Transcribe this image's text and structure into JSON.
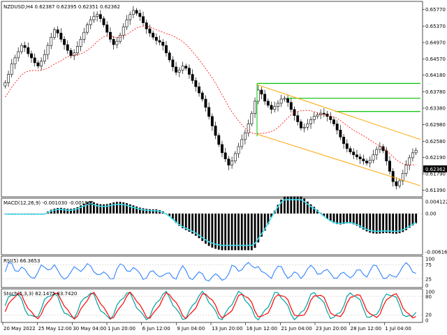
{
  "symbol_header": "NZDUSD,H4  0.62387 0.62395 0.62351 0.62362",
  "current_price_tag": "0.62362",
  "macd_header": "MACD(12,26,9) -0.001030 -0.001865",
  "rsi_header": "RSI(5) 66.3653",
  "stoch_header": "Stoch(5,3,3) 82.1475 83.7420",
  "colors": {
    "bull_candle": "#000000",
    "bear_candle": "#000000",
    "ma_line": "#ff0000",
    "channel": "#ffa500",
    "levels": "#00c000",
    "macd_signal": "#40e0f0",
    "rsi_line": "#1e78ff",
    "stoch_main": "#00a0a0",
    "stoch_signal": "#ff0000",
    "price_tag_bg": "#000000"
  },
  "price_axis": [
    "0.65770",
    "0.65370",
    "0.64970",
    "0.64570",
    "0.64180",
    "0.63780",
    "0.63380",
    "0.62980",
    "0.62580",
    "0.62190",
    "0.61790",
    "0.61390"
  ],
  "macd_axis": [
    "0.004122",
    "0.00",
    "-0.006163"
  ],
  "rsi_axis": [
    "100",
    "75",
    "25",
    "0"
  ],
  "stoch_axis": [
    "100",
    "80",
    "20",
    "0"
  ],
  "time_axis": [
    "20 May 2022",
    "25 May 12:00",
    "30 May 04:00",
    "1 Jun 20:00",
    "6 Jun 12:00",
    "9 Jun 04:00",
    "13 Jun 20:00",
    "16 Jun 12:00",
    "21 Jun 04:00",
    "23 Jun 20:00",
    "28 Jun 12:00",
    "1 Jul 04:00"
  ],
  "chart_data": {
    "type": "candlestick",
    "symbol": "NZDUSD",
    "timeframe": "H4",
    "ylim": [
      0.613,
      0.659
    ],
    "closes": [
      0.64,
      0.642,
      0.6445,
      0.646,
      0.6475,
      0.649,
      0.6485,
      0.647,
      0.646,
      0.6448,
      0.644,
      0.6452,
      0.6468,
      0.649,
      0.651,
      0.6528,
      0.652,
      0.6505,
      0.6492,
      0.6478,
      0.6465,
      0.6472,
      0.6488,
      0.6505,
      0.6522,
      0.654,
      0.6552,
      0.656,
      0.6565,
      0.6555,
      0.654,
      0.6522,
      0.6505,
      0.6492,
      0.65,
      0.6515,
      0.6535,
      0.6552,
      0.6565,
      0.6575,
      0.6568,
      0.656,
      0.6545,
      0.653,
      0.652,
      0.651,
      0.6502,
      0.6498,
      0.649,
      0.6472,
      0.6455,
      0.6438,
      0.6425,
      0.643,
      0.644,
      0.6435,
      0.642,
      0.6405,
      0.639,
      0.6375,
      0.636,
      0.634,
      0.6318,
      0.6295,
      0.6272,
      0.625,
      0.623,
      0.6215,
      0.62,
      0.621,
      0.6228,
      0.6245,
      0.6262,
      0.6278,
      0.63,
      0.6325,
      0.6355,
      0.6382,
      0.6372,
      0.6355,
      0.6345,
      0.6335,
      0.6342,
      0.635,
      0.636,
      0.6362,
      0.6352,
      0.6335,
      0.632,
      0.6305,
      0.629,
      0.6292,
      0.63,
      0.631,
      0.6318,
      0.6322,
      0.6326,
      0.6324,
      0.6318,
      0.631,
      0.63,
      0.6285,
      0.6268,
      0.6252,
      0.624,
      0.6232,
      0.6225,
      0.622,
      0.6215,
      0.621,
      0.6205,
      0.6212,
      0.6225,
      0.6238,
      0.6245,
      0.6235,
      0.621,
      0.6185,
      0.616,
      0.615,
      0.6162,
      0.618,
      0.62,
      0.6218,
      0.623,
      0.6236
    ],
    "ma_label": "",
    "channel_upper": [
      [
        0.6395,
        0.6262
      ]
    ],
    "channel_lower": [
      [
        0.6275,
        0.615
      ]
    ],
    "green_levels": [
      0.6398,
      0.6362,
      0.633
    ]
  }
}
